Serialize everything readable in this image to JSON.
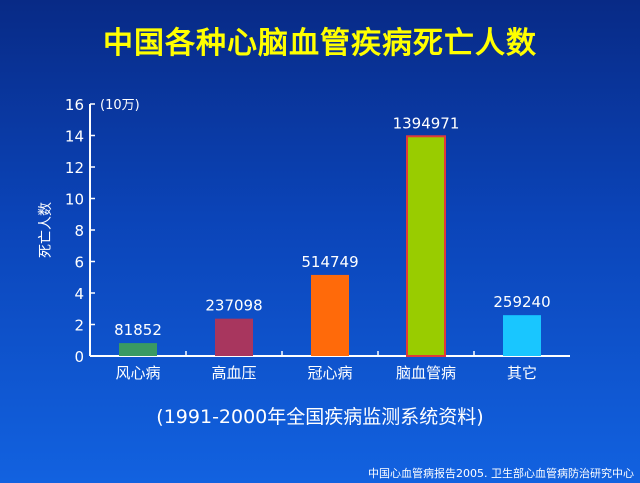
{
  "chart_data": {
    "type": "bar",
    "title": "中国各种心脑血管疾病死亡人数",
    "subtitle": "(1991-2000年全国疾病监测系统资料)",
    "source": "中国心血管病报告2005. 卫生部心血管病防治研究中心",
    "ylabel": "死亡人数",
    "yunit": "(10万)",
    "ylim": [
      0,
      16
    ],
    "yticks": [
      "0",
      "2",
      "4",
      "6",
      "8",
      "10",
      "12",
      "14",
      "16"
    ],
    "categories": [
      "风心病",
      "高血压",
      "冠心病",
      "脑血管病",
      "其它"
    ],
    "values": [
      81852,
      237098,
      514749,
      1394971,
      259240
    ],
    "data_labels": [
      "81852",
      "237098",
      "514749",
      "1394971",
      "259240"
    ],
    "colors": [
      "#3a9a62",
      "#a8365e",
      "#ff6a0a",
      "#99cc00",
      "#19c6ff"
    ],
    "highlight_border": "#e03a3a",
    "grid": false
  }
}
